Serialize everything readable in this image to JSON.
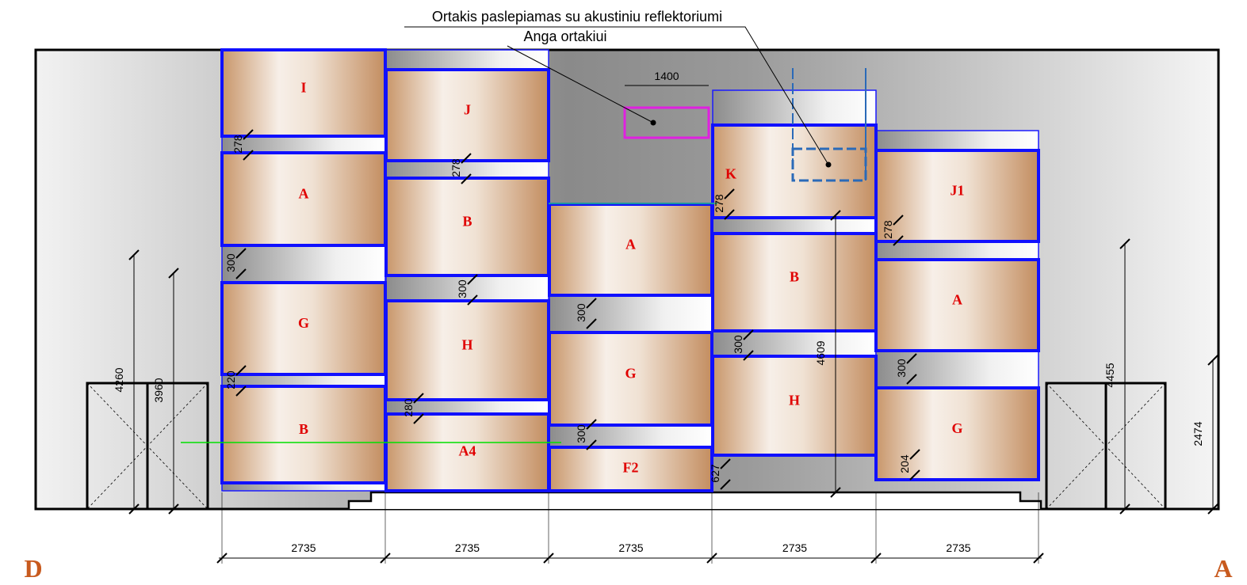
{
  "annotations": {
    "duct": "Ortakis paslepiamas su akustiniu reflektoriumi",
    "opening": "Anga ortakiui",
    "opening_width": "1400"
  },
  "panels": [
    "I",
    "A",
    "G",
    "B",
    "J",
    "B",
    "H",
    "A4",
    "A",
    "G",
    "F2",
    "K",
    "B",
    "H",
    "J1",
    "A",
    "G"
  ],
  "gaps": [
    "278",
    "300",
    "220",
    "278",
    "300",
    "280",
    "300",
    "300",
    "278",
    "300",
    "627",
    "278",
    "300",
    "204"
  ],
  "heights": [
    "4260",
    "3960",
    "4609",
    "4455",
    "2474"
  ],
  "widths": [
    "2735",
    "2735",
    "2735",
    "2735",
    "2735"
  ],
  "corners": [
    "D",
    "A"
  ]
}
